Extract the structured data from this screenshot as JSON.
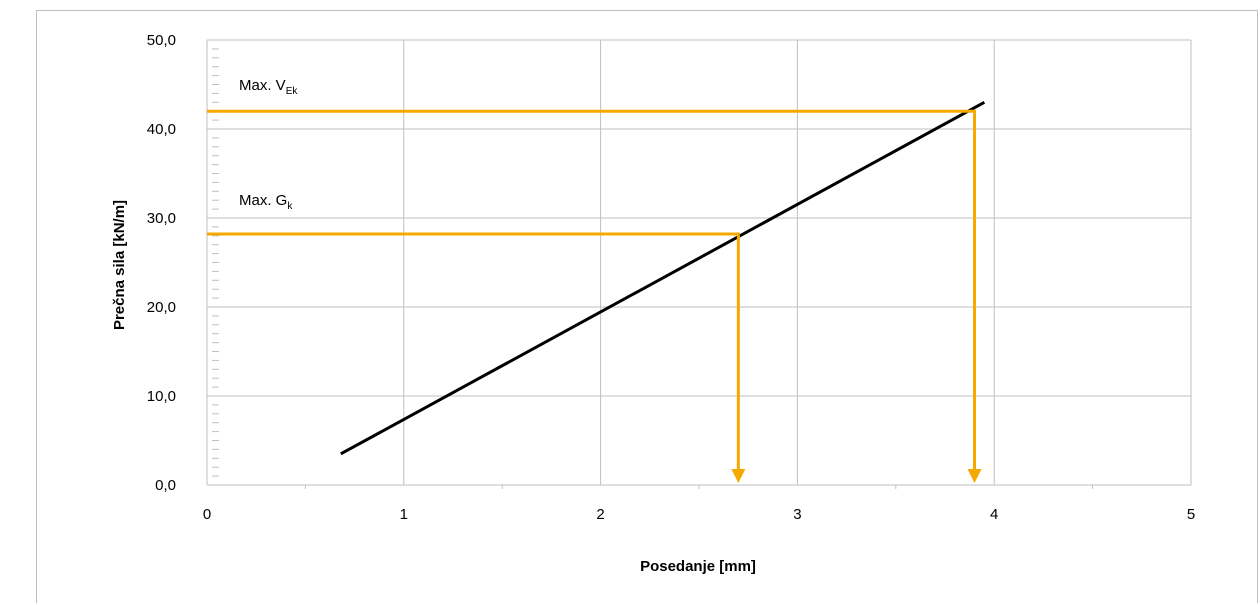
{
  "colors": {
    "series": "#000000",
    "marker": "#f5a800",
    "grid": "#bfbfbf"
  },
  "chart_data": {
    "type": "line",
    "xlabel": "Posedanje [mm]",
    "ylabel": "Prečna sila [kN/m]",
    "xlim": [
      0,
      5
    ],
    "ylim": [
      0,
      50
    ],
    "xticks": [
      0,
      1,
      2,
      3,
      4,
      5
    ],
    "yticks": [
      0,
      10,
      20,
      30,
      40,
      50
    ],
    "xtick_labels": [
      "0",
      "1",
      "2",
      "3",
      "4",
      "5"
    ],
    "ytick_labels": [
      "0,0",
      "10,0",
      "20,0",
      "30,0",
      "40,0",
      "50,0"
    ],
    "grid": true,
    "series": [
      {
        "x": [
          0.68,
          3.95
        ],
        "y": [
          3.5,
          43.0
        ]
      }
    ],
    "annotations": [
      {
        "text": "Max. V",
        "sub": "Ek",
        "x": 3.9,
        "y": 42.0
      },
      {
        "text": "Max. G",
        "sub": "k",
        "x": 2.7,
        "y": 28.2
      }
    ]
  }
}
